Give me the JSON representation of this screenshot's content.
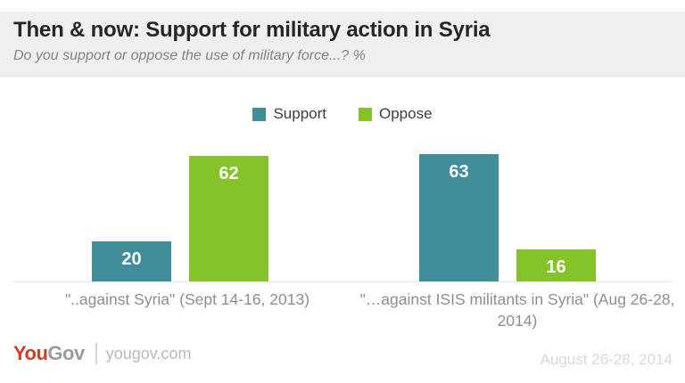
{
  "header": {
    "title": "Then & now: Support for military action in Syria",
    "subtitle": "Do you support or oppose the use of military force...? %"
  },
  "chart_data": {
    "type": "bar",
    "categories": [
      "\"..against Syria\" (Sept 14-16, 2013)",
      "\"…against ISIS militants in Syria\" (Aug 26-28, 2014)"
    ],
    "series": [
      {
        "name": "Support",
        "color": "#3f8e99",
        "values": [
          20,
          63
        ]
      },
      {
        "name": "Oppose",
        "color": "#85c32b",
        "values": [
          62,
          16
        ]
      }
    ],
    "title": "Then & now: Support for military action in Syria",
    "xlabel": "",
    "ylabel": "",
    "ylim": [
      0,
      70
    ],
    "grid": false,
    "legend_position": "top-center",
    "value_labels": "inside-top-white"
  },
  "footer": {
    "logo_you": "You",
    "logo_gov": "Gov",
    "site": "yougov.com",
    "date_note": "August 26-28, 2014"
  },
  "colors": {
    "support": "#3f8e99",
    "oppose": "#85c32b",
    "header_bg": "#f0efef",
    "axis_line": "#e7e7e7",
    "logo_red": "#d23b27"
  }
}
